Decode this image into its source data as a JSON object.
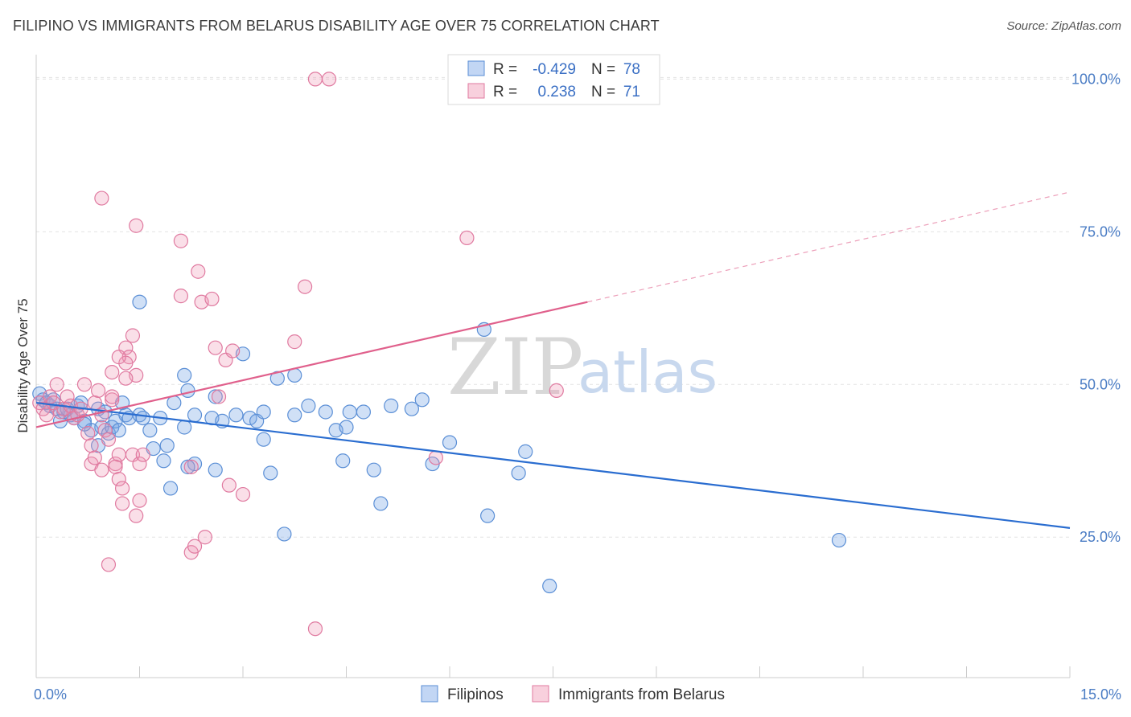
{
  "title": "FILIPINO VS IMMIGRANTS FROM BELARUS DISABILITY AGE OVER 75 CORRELATION CHART",
  "source": "Source: ZipAtlas.com",
  "colors": {
    "blue": "#5b8fd6",
    "blue_fill": "rgba(120,165,230,0.35)",
    "blue_line": "#2a6dd0",
    "pink": "#e07aa0",
    "pink_fill": "rgba(240,150,180,0.30)",
    "pink_line": "#e0608c"
  },
  "watermark": {
    "zip": "ZIP",
    "atlas": "atlas"
  },
  "legend": {
    "r_label": "R =",
    "n_label": "N =",
    "blue": {
      "r": "-0.429",
      "n": "78"
    },
    "pink": {
      "r": "0.238",
      "n": "71"
    }
  },
  "bottom_legend": [
    "Filipinos",
    "Immigrants from Belarus"
  ],
  "chart_data": {
    "type": "scatter",
    "title": "FILIPINO VS IMMIGRANTS FROM BELARUS DISABILITY AGE OVER 75 CORRELATION CHART",
    "xlabel": "",
    "ylabel": "Disability Age Over 75",
    "xlim": [
      0,
      15
    ],
    "ylim": [
      2,
      104
    ],
    "x_tick_labels": [
      {
        "value": 0,
        "label": "0.0%"
      },
      {
        "value": 15,
        "label": "15.0%"
      }
    ],
    "y_tick_labels": [
      {
        "value": 25,
        "label": "25.0%"
      },
      {
        "value": 50,
        "label": "50.0%"
      },
      {
        "value": 75,
        "label": "75.0%"
      },
      {
        "value": 100,
        "label": "100.0%"
      }
    ],
    "grid": true,
    "legend_position": "top-center",
    "series": [
      {
        "name": "Filipinos",
        "color": "blue",
        "r": -0.429,
        "n": 78,
        "trend": {
          "x0": 0,
          "y0": 47.0,
          "x1": 15,
          "y1": 26.5
        },
        "points": [
          [
            0.05,
            48.5
          ],
          [
            0.1,
            47.5
          ],
          [
            0.15,
            47
          ],
          [
            0.2,
            46.5
          ],
          [
            0.25,
            47.5
          ],
          [
            0.3,
            46
          ],
          [
            0.35,
            44
          ],
          [
            0.4,
            45.5
          ],
          [
            0.45,
            46
          ],
          [
            0.5,
            45
          ],
          [
            0.55,
            44.5
          ],
          [
            0.6,
            46.5
          ],
          [
            0.65,
            47
          ],
          [
            0.7,
            44
          ],
          [
            0.8,
            42.5
          ],
          [
            0.9,
            46
          ],
          [
            0.95,
            43
          ],
          [
            1.05,
            42
          ],
          [
            1.1,
            43
          ],
          [
            1.15,
            44
          ],
          [
            1.2,
            42.5
          ],
          [
            1.25,
            47
          ],
          [
            1.3,
            45
          ],
          [
            1.35,
            44.5
          ],
          [
            0.9,
            40
          ],
          [
            1.7,
            39.5
          ],
          [
            1.9,
            40
          ],
          [
            1.8,
            44.5
          ],
          [
            2.0,
            47
          ],
          [
            2.2,
            49
          ],
          [
            2.3,
            45
          ],
          [
            2.55,
            44.5
          ],
          [
            2.7,
            44
          ],
          [
            2.9,
            45
          ],
          [
            3.1,
            44.5
          ],
          [
            3.2,
            44
          ],
          [
            3.3,
            45.5
          ],
          [
            1.85,
            37.5
          ],
          [
            2.3,
            37
          ],
          [
            2.6,
            36
          ],
          [
            2.2,
            36.5
          ],
          [
            3.3,
            41
          ],
          [
            3.4,
            35.5
          ],
          [
            3.5,
            51
          ],
          [
            3.75,
            51.5
          ],
          [
            3.75,
            45
          ],
          [
            3.95,
            46.5
          ],
          [
            4.2,
            45.5
          ],
          [
            4.35,
            42.5
          ],
          [
            4.5,
            43
          ],
          [
            4.55,
            45.5
          ],
          [
            4.75,
            45.5
          ],
          [
            4.45,
            37.5
          ],
          [
            4.9,
            36
          ],
          [
            5.0,
            30.5
          ],
          [
            5.15,
            46.5
          ],
          [
            5.45,
            46
          ],
          [
            5.6,
            47.5
          ],
          [
            5.75,
            37
          ],
          [
            6.0,
            40.5
          ],
          [
            6.5,
            59
          ],
          [
            6.55,
            28.5
          ],
          [
            7.0,
            35.5
          ],
          [
            7.1,
            39
          ],
          [
            7.45,
            17
          ],
          [
            11.65,
            24.5
          ],
          [
            2.15,
            43
          ],
          [
            1.95,
            33
          ],
          [
            1.5,
            63.5
          ],
          [
            3.0,
            55
          ],
          [
            3.6,
            25.5
          ],
          [
            2.15,
            51.5
          ],
          [
            1.5,
            45
          ],
          [
            1.55,
            44.5
          ],
          [
            2.6,
            48
          ],
          [
            1.65,
            42.5
          ],
          [
            0.7,
            43.5
          ],
          [
            1.0,
            45.5
          ]
        ]
      },
      {
        "name": "Immigrants from Belarus",
        "color": "pink",
        "r": 0.238,
        "n": 71,
        "trend": {
          "x0": 0,
          "y0": 43.0,
          "x1": 8.0,
          "y1": 63.5,
          "dash_x1": 15,
          "dash_y1": 81.5
        },
        "points": [
          [
            0.05,
            47
          ],
          [
            0.1,
            46
          ],
          [
            0.15,
            45
          ],
          [
            0.2,
            48
          ],
          [
            0.25,
            47
          ],
          [
            0.3,
            50
          ],
          [
            0.35,
            45.5
          ],
          [
            0.4,
            46
          ],
          [
            0.45,
            48
          ],
          [
            0.5,
            46.5
          ],
          [
            0.55,
            44.5
          ],
          [
            0.6,
            45
          ],
          [
            0.65,
            46
          ],
          [
            0.7,
            50
          ],
          [
            0.75,
            42
          ],
          [
            0.8,
            40
          ],
          [
            0.85,
            47
          ],
          [
            0.9,
            49
          ],
          [
            0.95,
            45
          ],
          [
            1.0,
            42.5
          ],
          [
            1.05,
            41
          ],
          [
            1.1,
            47.5
          ],
          [
            1.15,
            37
          ],
          [
            1.2,
            38.5
          ],
          [
            0.8,
            37
          ],
          [
            0.95,
            36
          ],
          [
            0.85,
            38
          ],
          [
            1.25,
            30.5
          ],
          [
            1.4,
            38.5
          ],
          [
            1.5,
            37
          ],
          [
            1.55,
            38.5
          ],
          [
            1.5,
            31
          ],
          [
            1.45,
            28.5
          ],
          [
            1.3,
            56
          ],
          [
            1.35,
            54.5
          ],
          [
            1.45,
            51.5
          ],
          [
            1.3,
            53.5
          ],
          [
            1.4,
            58
          ],
          [
            1.3,
            51
          ],
          [
            1.2,
            54.5
          ],
          [
            1.1,
            52
          ],
          [
            1.1,
            48
          ],
          [
            1.15,
            36.5
          ],
          [
            1.2,
            34.5
          ],
          [
            1.25,
            33
          ],
          [
            1.05,
            20.5
          ],
          [
            0.95,
            80.5
          ],
          [
            1.45,
            76
          ],
          [
            2.1,
            73.5
          ],
          [
            2.35,
            68.5
          ],
          [
            2.4,
            63.5
          ],
          [
            2.55,
            64
          ],
          [
            2.6,
            56
          ],
          [
            2.75,
            54
          ],
          [
            2.85,
            55.5
          ],
          [
            2.65,
            48
          ],
          [
            2.25,
            36.5
          ],
          [
            2.8,
            33.5
          ],
          [
            3.0,
            32
          ],
          [
            2.45,
            25
          ],
          [
            2.25,
            22.5
          ],
          [
            2.3,
            23.5
          ],
          [
            3.9,
            66
          ],
          [
            3.75,
            57
          ],
          [
            4.05,
            10
          ],
          [
            4.05,
            100
          ],
          [
            4.25,
            100
          ],
          [
            6.25,
            74
          ],
          [
            7.55,
            49
          ],
          [
            5.8,
            38
          ],
          [
            2.1,
            64.5
          ]
        ]
      }
    ]
  }
}
